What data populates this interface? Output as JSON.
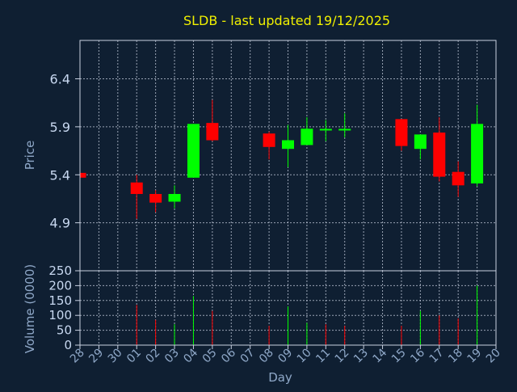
{
  "chart_data": [
    {
      "type": "candlestick",
      "title": "SLDB - last updated 19/12/2025",
      "ylabel": "Price",
      "yticks": [
        "6.4",
        "5.9",
        "5.4",
        "4.9"
      ],
      "ylim": [
        4.4,
        6.8
      ],
      "categories": [
        "28",
        "29",
        "30",
        "01",
        "02",
        "03",
        "04",
        "05",
        "06",
        "07",
        "08",
        "09",
        "10",
        "11",
        "12",
        "13",
        "14",
        "15",
        "16",
        "17",
        "18",
        "19",
        "20"
      ],
      "candles": [
        {
          "day": "28",
          "open": 5.42,
          "high": 5.45,
          "low": 5.37,
          "close": 5.37
        },
        {
          "day": "01",
          "open": 5.32,
          "high": 5.4,
          "low": 4.94,
          "close": 5.2
        },
        {
          "day": "02",
          "open": 5.2,
          "high": 5.24,
          "low": 5.01,
          "close": 5.11
        },
        {
          "day": "03",
          "open": 5.12,
          "high": 5.29,
          "low": 5.05,
          "close": 5.2
        },
        {
          "day": "04",
          "open": 5.37,
          "high": 5.93,
          "low": 5.37,
          "close": 5.93
        },
        {
          "day": "05",
          "open": 5.94,
          "high": 6.18,
          "low": 5.75,
          "close": 5.76
        },
        {
          "day": "08",
          "open": 5.83,
          "high": 5.85,
          "low": 5.56,
          "close": 5.69
        },
        {
          "day": "09",
          "open": 5.67,
          "high": 5.92,
          "low": 5.48,
          "close": 5.76
        },
        {
          "day": "10",
          "open": 5.71,
          "high": 6.0,
          "low": 5.71,
          "close": 5.88
        },
        {
          "day": "11",
          "open": 5.87,
          "high": 5.97,
          "low": 5.75,
          "close": 5.87
        },
        {
          "day": "12",
          "open": 5.87,
          "high": 6.04,
          "low": 5.79,
          "close": 5.87
        },
        {
          "day": "15",
          "open": 5.98,
          "high": 5.98,
          "low": 5.65,
          "close": 5.7
        },
        {
          "day": "16",
          "open": 5.67,
          "high": 5.82,
          "low": 5.56,
          "close": 5.82
        },
        {
          "day": "17",
          "open": 5.84,
          "high": 6.0,
          "low": 5.33,
          "close": 5.38
        },
        {
          "day": "18",
          "open": 5.43,
          "high": 5.54,
          "low": 5.17,
          "close": 5.29
        },
        {
          "day": "19",
          "open": 5.31,
          "high": 6.13,
          "low": 5.28,
          "close": 5.93
        }
      ],
      "up_color": "#00ff00",
      "down_color": "#ff0000",
      "grid": true
    },
    {
      "type": "bar",
      "ylabel": "Volume (0000)",
      "yticks": [
        "250",
        "200",
        "150",
        "100",
        "50",
        "0"
      ],
      "ylim": [
        0,
        250
      ],
      "xlabel": "Day",
      "categories": [
        "28",
        "29",
        "30",
        "01",
        "02",
        "03",
        "04",
        "05",
        "06",
        "07",
        "08",
        "09",
        "10",
        "11",
        "12",
        "13",
        "14",
        "15",
        "16",
        "17",
        "18",
        "19",
        "20"
      ],
      "volumes": [
        {
          "day": "01",
          "value": 135,
          "color": "#ff0000"
        },
        {
          "day": "02",
          "value": 85,
          "color": "#ff0000"
        },
        {
          "day": "03",
          "value": 70,
          "color": "#00ff00"
        },
        {
          "day": "04",
          "value": 165,
          "color": "#00ff00"
        },
        {
          "day": "05",
          "value": 115,
          "color": "#ff0000"
        },
        {
          "day": "08",
          "value": 65,
          "color": "#ff0000"
        },
        {
          "day": "09",
          "value": 130,
          "color": "#00ff00"
        },
        {
          "day": "10",
          "value": 75,
          "color": "#00ff00"
        },
        {
          "day": "11",
          "value": 70,
          "color": "#ff0000"
        },
        {
          "day": "12",
          "value": 65,
          "color": "#ff0000"
        },
        {
          "day": "15",
          "value": 65,
          "color": "#ff0000"
        },
        {
          "day": "16",
          "value": 115,
          "color": "#00ff00"
        },
        {
          "day": "17",
          "value": 100,
          "color": "#ff0000"
        },
        {
          "day": "18",
          "value": 90,
          "color": "#ff0000"
        },
        {
          "day": "19",
          "value": 200,
          "color": "#00ff00"
        }
      ],
      "grid": true
    }
  ]
}
